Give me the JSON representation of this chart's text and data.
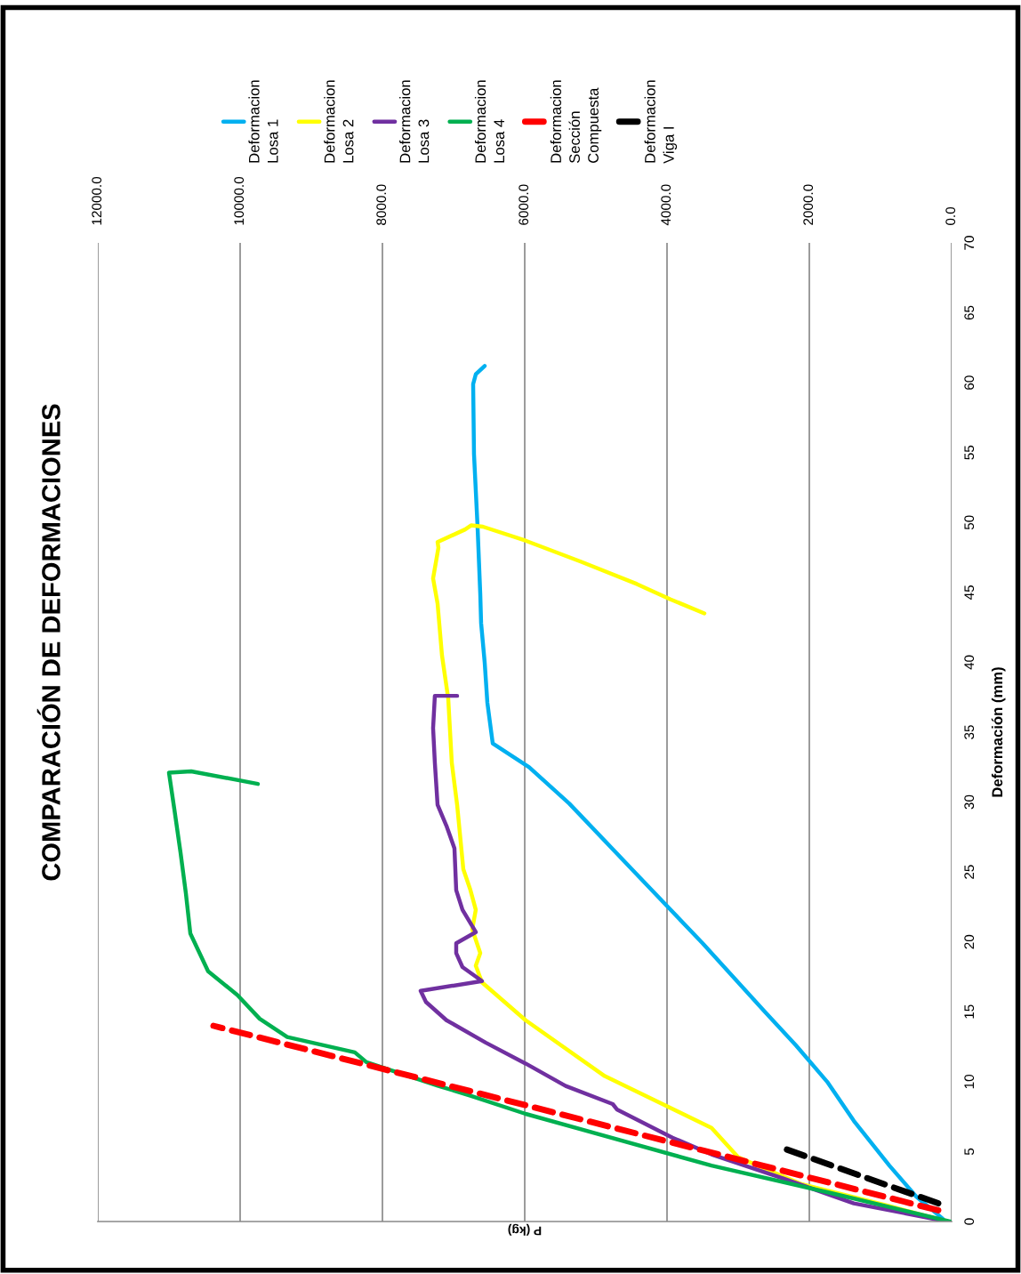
{
  "chart_data": {
    "type": "line",
    "title": "COMPARACIÓN DE DEFORMACIONES",
    "xlabel": "P (kg)",
    "ylabel": "Deformación (mm)",
    "ylim": [
      0,
      70
    ],
    "yticks": [
      0,
      5,
      10,
      15,
      20,
      25,
      30,
      35,
      40,
      45,
      50,
      55,
      60,
      65,
      70
    ],
    "xlim": [
      12000,
      0
    ],
    "xticks": [
      {
        "value": 0,
        "label": "0.0"
      },
      {
        "value": 2000,
        "label": "2000.0"
      },
      {
        "value": 4000,
        "label": "4000.0"
      },
      {
        "value": 6000,
        "label": "6000.0"
      },
      {
        "value": 8000,
        "label": "8000.0"
      },
      {
        "value": 10000,
        "label": "10000.0"
      },
      {
        "value": 12000,
        "label": "12000.0"
      }
    ],
    "grid": "x",
    "legend": "top left",
    "series": [
      {
        "name": "Deformacion Losa 1",
        "color": "#00b0f0",
        "line_style": "solid",
        "values": [
          0.2,
          1.8,
          4.0,
          7.2,
          10.0,
          12.6,
          15.0,
          19.9,
          24.9,
          29.9,
          32.5,
          34.2,
          37.1,
          40.0,
          42.8,
          44.9,
          49.7,
          54.9,
          59.9,
          60.6,
          61.2
        ],
        "x": [
          125,
          500,
          875,
          1375,
          1750,
          2188,
          2625,
          3500,
          4438,
          5375,
          5938,
          6450,
          6525,
          6563,
          6613,
          6625,
          6663,
          6713,
          6725,
          6688,
          6563
        ]
      },
      {
        "name": "Deformacion Losa 2",
        "color": "#ffff00",
        "line_style": "solid",
        "values": [
          0,
          1.1,
          2.7,
          4.6,
          6.7,
          10.4,
          14.4,
          17.1,
          18.3,
          19.2,
          20.9,
          22.3,
          23.7,
          25.2,
          29.8,
          32.8,
          37.4,
          40.5,
          44.2,
          46.0,
          48.2,
          48.6,
          49.5,
          49.8,
          49.7,
          48.7,
          47.2,
          45.6,
          44.5,
          43.5
        ],
        "x": [
          63,
          875,
          2125,
          3000,
          3375,
          4875,
          5988,
          6600,
          6688,
          6625,
          6738,
          6688,
          6763,
          6863,
          6950,
          7025,
          7075,
          7163,
          7225,
          7288,
          7213,
          7225,
          6838,
          6750,
          6588,
          5988,
          5213,
          4425,
          3950,
          3475
        ]
      },
      {
        "name": "Deformacion Losa 3",
        "color": "#7030a0",
        "line_style": "solid",
        "values": [
          0,
          1.3,
          3.1,
          4.8,
          6.0,
          8.0,
          8.4,
          9.7,
          11.3,
          12.8,
          14.4,
          15.7,
          16.5,
          17.2,
          18.2,
          19.2,
          19.9,
          20.7,
          22.3,
          23.7,
          26.7,
          28.3,
          29.8,
          32.8,
          35.3,
          37.6,
          37.6
        ],
        "x": [
          63,
          1375,
          2375,
          3375,
          3925,
          4700,
          4763,
          5425,
          5988,
          6550,
          7100,
          7388,
          7463,
          6600,
          6875,
          6963,
          6963,
          6688,
          6875,
          6963,
          6988,
          7100,
          7225,
          7263,
          7288,
          7263,
          6950
        ]
      },
      {
        "name": "Deformacion Losa 4",
        "color": "#00b050",
        "line_style": "solid",
        "values": [
          0,
          2.1,
          4.0,
          7.7,
          9.0,
          9.7,
          11.4,
          12.1,
          13.2,
          14.5,
          16.2,
          17.9,
          20.6,
          23.5,
          26.4,
          29.5,
          32.1,
          32.2,
          31.3
        ],
        "x": [
          25,
          1750,
          3375,
          5988,
          6763,
          7213,
          8225,
          8388,
          9338,
          9725,
          10038,
          10450,
          10700,
          10763,
          10838,
          10925,
          11000,
          10688,
          9750
        ]
      },
      {
        "name": "Deformacion Sección Compuesta",
        "color": "#ff0000",
        "line_style": "dashed",
        "values": [
          0.8,
          14.0
        ],
        "x": [
          188,
          10375
        ]
      },
      {
        "name": "Deformacion Viga I",
        "color": "#000000",
        "line_style": "dashed",
        "values": [
          1.3,
          5.3
        ],
        "x": [
          188,
          2400
        ]
      }
    ]
  }
}
